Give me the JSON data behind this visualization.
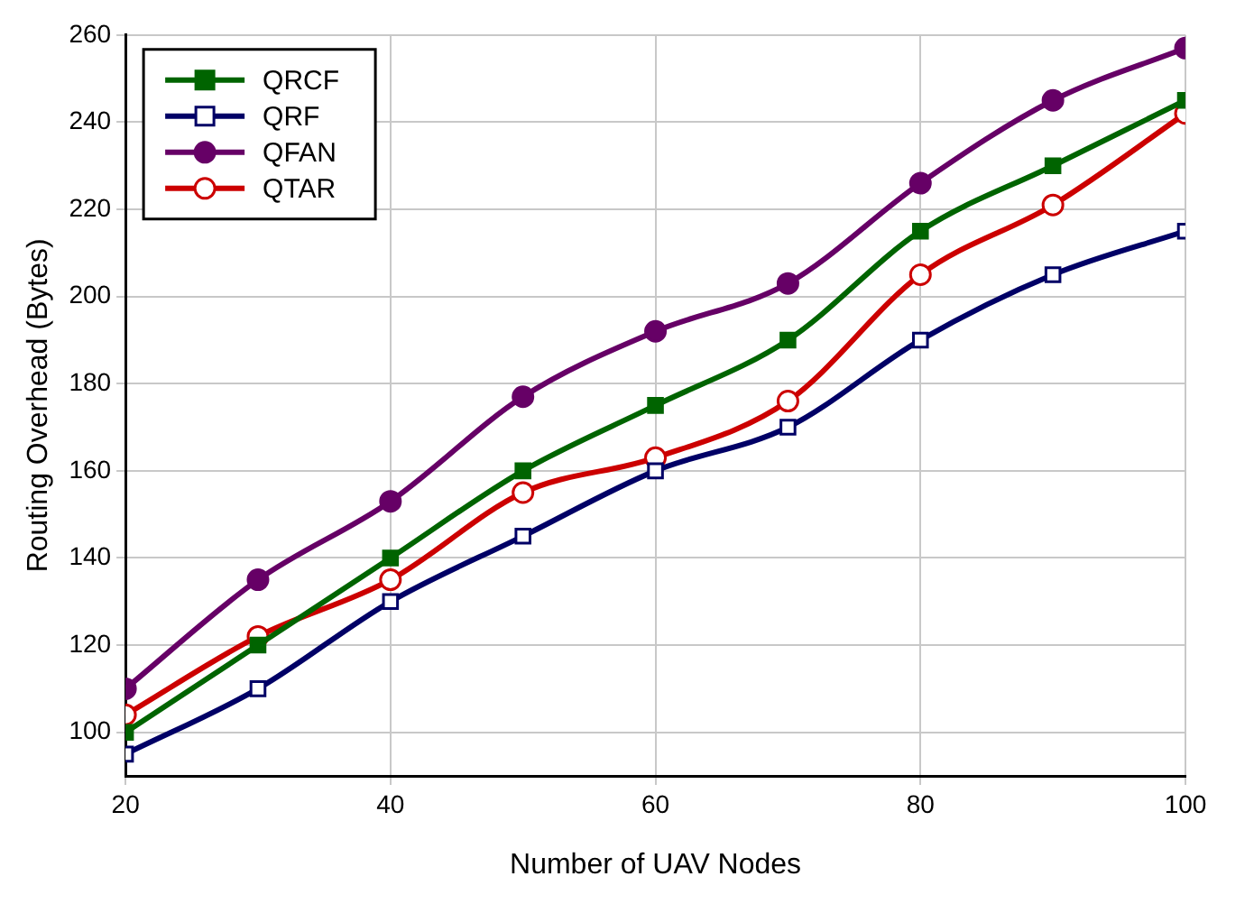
{
  "chart_data": {
    "type": "line",
    "xlabel": "Number of UAV Nodes",
    "ylabel": "Routing Overhead (Bytes)",
    "x": [
      20,
      30,
      40,
      50,
      60,
      70,
      80,
      90,
      100
    ],
    "xlim": [
      20,
      100
    ],
    "xticks": [
      20,
      40,
      60,
      80,
      100
    ],
    "ylim": [
      90,
      260
    ],
    "yticks": [
      100,
      120,
      140,
      160,
      180,
      200,
      220,
      240,
      260
    ],
    "grid": true,
    "legend": "top left",
    "series": [
      {
        "name": "QRCF",
        "color": "#006400",
        "marker": "square",
        "values": [
          100,
          120,
          140,
          160,
          175,
          190,
          215,
          230,
          245
        ]
      },
      {
        "name": "QRF",
        "color": "#000066",
        "marker": "square",
        "values": [
          95,
          110,
          130,
          145,
          160,
          170,
          190,
          205,
          215
        ]
      },
      {
        "name": "QFAN",
        "color": "#660066",
        "marker": "circle",
        "values": [
          110,
          135,
          153,
          177,
          192,
          203,
          226,
          245,
          257
        ]
      },
      {
        "name": "QTAR",
        "color": "#cc0000",
        "marker": "circle",
        "values": [
          104,
          122,
          135,
          155,
          163,
          176,
          205,
          221,
          242
        ]
      }
    ]
  }
}
